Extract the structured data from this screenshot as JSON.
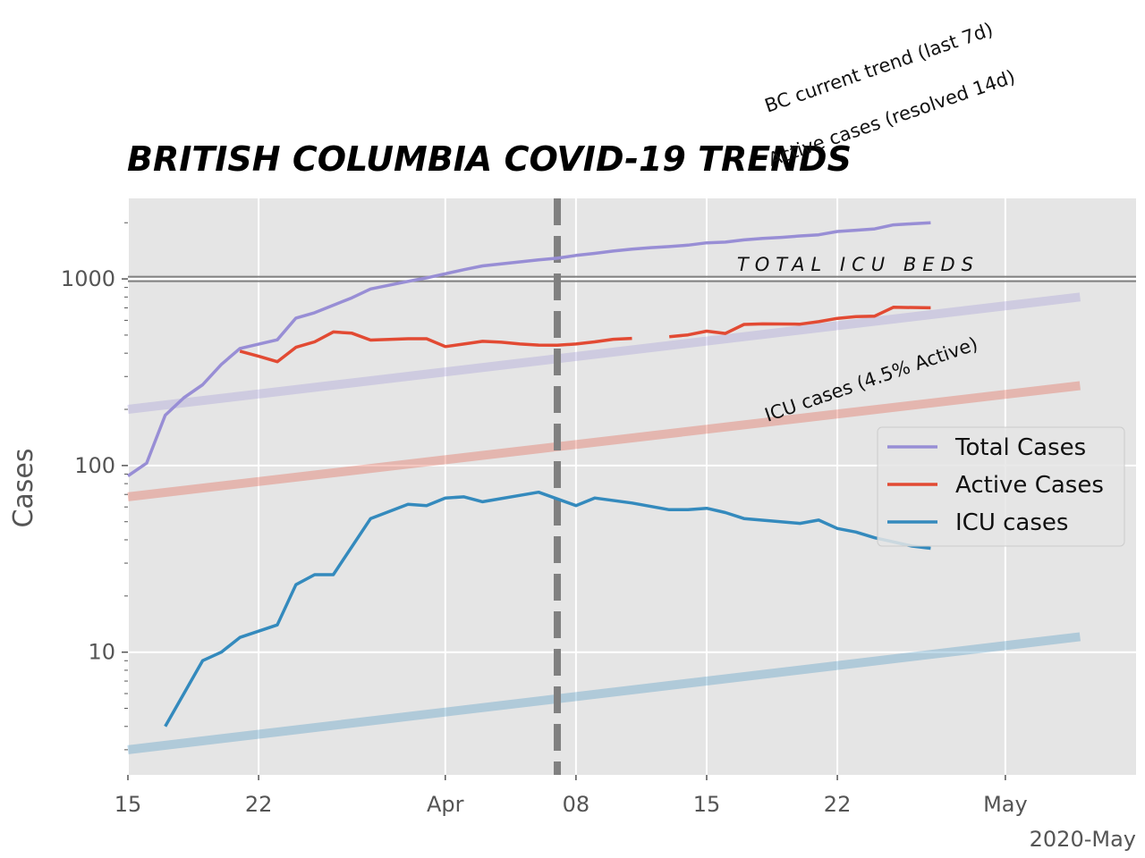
{
  "chart_data": {
    "type": "line",
    "title": "BRITISH COLUMBIA COVID-19 TRENDS",
    "xlabel": "",
    "ylabel": "Cases",
    "y_scale": "log",
    "grid": true,
    "x_unit": "date",
    "x_range": [
      "2020-03-15",
      "2020-05-08"
    ],
    "ylim": [
      2.2,
      2700
    ],
    "x_ticks": [
      {
        "date": "2020-03-15",
        "label": "15"
      },
      {
        "date": "2020-03-22",
        "label": "22"
      },
      {
        "date": "2020-04-01",
        "label": "Apr"
      },
      {
        "date": "2020-04-08",
        "label": "08"
      },
      {
        "date": "2020-04-15",
        "label": "15"
      },
      {
        "date": "2020-04-22",
        "label": "22"
      },
      {
        "date": "2020-05-01",
        "label": "May"
      }
    ],
    "x_offset_label": "2020-May",
    "y_ticks": [
      {
        "value": 10,
        "label": "10"
      },
      {
        "value": 100,
        "label": "100"
      },
      {
        "value": 1000,
        "label": "1000"
      }
    ],
    "legend": {
      "position": "center-right",
      "entries": [
        "Total Cases",
        "Active Cases",
        "ICU cases"
      ]
    },
    "series": [
      {
        "name": "Total Cases",
        "color": "#988ED5",
        "values": [
          [
            "2020-03-15",
            88
          ],
          [
            "2020-03-16",
            103
          ],
          [
            "2020-03-17",
            186
          ],
          [
            "2020-03-18",
            231
          ],
          [
            "2020-03-19",
            271
          ],
          [
            "2020-03-20",
            348
          ],
          [
            "2020-03-21",
            424
          ],
          [
            "2020-03-23",
            472
          ],
          [
            "2020-03-24",
            617
          ],
          [
            "2020-03-25",
            659
          ],
          [
            "2020-03-27",
            792
          ],
          [
            "2020-03-28",
            884
          ],
          [
            "2020-03-30",
            970
          ],
          [
            "2020-03-31",
            1013
          ],
          [
            "2020-04-01",
            1066
          ],
          [
            "2020-04-02",
            1121
          ],
          [
            "2020-04-03",
            1174
          ],
          [
            "2020-04-06",
            1266
          ],
          [
            "2020-04-07",
            1291
          ],
          [
            "2020-04-08",
            1336
          ],
          [
            "2020-04-09",
            1370
          ],
          [
            "2020-04-10",
            1410
          ],
          [
            "2020-04-11",
            1445
          ],
          [
            "2020-04-12",
            1470
          ],
          [
            "2020-04-13",
            1490
          ],
          [
            "2020-04-14",
            1517
          ],
          [
            "2020-04-15",
            1561
          ],
          [
            "2020-04-16",
            1575
          ],
          [
            "2020-04-17",
            1618
          ],
          [
            "2020-04-18",
            1647
          ],
          [
            "2020-04-19",
            1670
          ],
          [
            "2020-04-20",
            1699
          ],
          [
            "2020-04-21",
            1724
          ],
          [
            "2020-04-22",
            1795
          ],
          [
            "2020-04-23",
            1824
          ],
          [
            "2020-04-24",
            1853
          ],
          [
            "2020-04-25",
            1948
          ],
          [
            "2020-04-26",
            1974
          ],
          [
            "2020-04-27",
            1998
          ]
        ]
      },
      {
        "name": "Active Cases",
        "color": "#E24A33",
        "values": [
          [
            "2020-03-21",
            410
          ],
          [
            "2020-03-22",
            385
          ],
          [
            "2020-03-23",
            360
          ],
          [
            "2020-03-24",
            430
          ],
          [
            "2020-03-25",
            460
          ],
          [
            "2020-03-26",
            520
          ],
          [
            "2020-03-27",
            512
          ],
          [
            "2020-03-28",
            470
          ],
          [
            "2020-03-30",
            478
          ],
          [
            "2020-03-31",
            478
          ],
          [
            "2020-04-01",
            434
          ],
          [
            "2020-04-02",
            448
          ],
          [
            "2020-04-03",
            463
          ],
          [
            "2020-04-04",
            458
          ],
          [
            "2020-04-05",
            448
          ],
          [
            "2020-04-06",
            442
          ],
          [
            "2020-04-07",
            441
          ],
          [
            "2020-04-08",
            448
          ],
          [
            "2020-04-09",
            460
          ],
          [
            "2020-04-10",
            475
          ],
          [
            "2020-04-11",
            480
          ],
          null,
          [
            "2020-04-13",
            490
          ],
          [
            "2020-04-14",
            501
          ],
          [
            "2020-04-15",
            525
          ],
          [
            "2020-04-16",
            510
          ],
          [
            "2020-04-17",
            570
          ],
          [
            "2020-04-18",
            574
          ],
          [
            "2020-04-20",
            572
          ],
          [
            "2020-04-21",
            590
          ],
          [
            "2020-04-22",
            615
          ],
          [
            "2020-04-23",
            628
          ],
          [
            "2020-04-24",
            632
          ],
          [
            "2020-04-25",
            705
          ],
          [
            "2020-04-27",
            700
          ]
        ]
      },
      {
        "name": "ICU cases",
        "color": "#348ABD",
        "values": [
          [
            "2020-03-17",
            4
          ],
          [
            "2020-03-19",
            9
          ],
          [
            "2020-03-20",
            10
          ],
          [
            "2020-03-21",
            12
          ],
          [
            "2020-03-23",
            14
          ],
          [
            "2020-03-24",
            23
          ],
          [
            "2020-03-25",
            26
          ],
          [
            "2020-03-26",
            26
          ],
          [
            "2020-03-28",
            52
          ],
          [
            "2020-03-30",
            62
          ],
          [
            "2020-03-31",
            61
          ],
          [
            "2020-04-01",
            67
          ],
          [
            "2020-04-02",
            68
          ],
          [
            "2020-04-03",
            64
          ],
          [
            "2020-04-06",
            72
          ],
          [
            "2020-04-08",
            61
          ],
          [
            "2020-04-09",
            67
          ],
          [
            "2020-04-11",
            63
          ],
          [
            "2020-04-13",
            58
          ],
          [
            "2020-04-14",
            58
          ],
          [
            "2020-04-15",
            59
          ],
          [
            "2020-04-16",
            56
          ],
          [
            "2020-04-17",
            52
          ],
          [
            "2020-04-20",
            49
          ],
          [
            "2020-04-21",
            51
          ],
          [
            "2020-04-22",
            46
          ],
          [
            "2020-04-23",
            44
          ],
          [
            "2020-04-24",
            41
          ],
          [
            "2020-04-25",
            39
          ],
          [
            "2020-04-26",
            37
          ],
          [
            "2020-04-27",
            36
          ]
        ]
      }
    ],
    "trend_lines": [
      {
        "label": "BC current trend (last 7d)",
        "color": "#988ED5",
        "values": [
          [
            "2020-03-15",
            200
          ],
          [
            "2020-05-05",
            800
          ]
        ]
      },
      {
        "label": "Active cases (resolved 14d)",
        "color": "#E24A33",
        "values": [
          [
            "2020-03-15",
            68
          ],
          [
            "2020-05-05",
            268
          ]
        ]
      },
      {
        "label": "ICU cases (4.5% Active)",
        "color": "#348ABD",
        "values": [
          [
            "2020-03-15",
            3.0
          ],
          [
            "2020-05-05",
            12.1
          ]
        ]
      }
    ],
    "reference_lines": [
      {
        "type": "horizontal",
        "label": "TOTAL ICU BEDS",
        "value": 1000,
        "color": "#808080"
      },
      {
        "type": "vertical",
        "value": "2020-04-07",
        "color": "#808080",
        "style": "dashed"
      }
    ]
  }
}
